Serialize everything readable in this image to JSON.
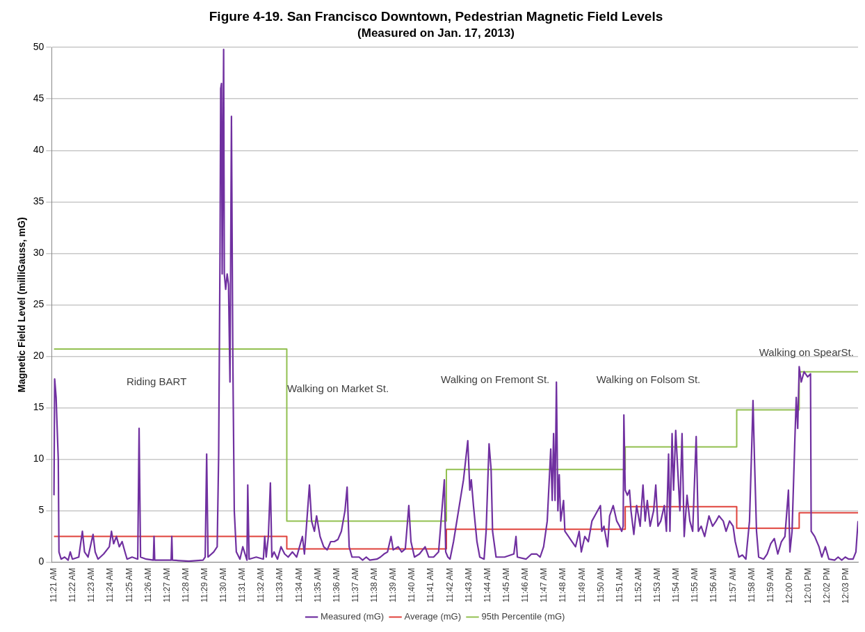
{
  "chart_data": {
    "type": "line",
    "title": "Figure 4-19. San Francisco Downtown, Pedestrian Magnetic Field Levels",
    "subtitle": "(Measured on Jan. 17, 2013)",
    "ylabel": "Magnetic Field Level (milliGauss, mG)",
    "xlim": [
      11.348,
      12.0604
    ],
    "xticks": [
      {
        "value": 11.35,
        "label": "11:21 AM"
      },
      {
        "value": 11.3667,
        "label": "11:22 AM"
      },
      {
        "value": 11.3833,
        "label": "11:23 AM"
      },
      {
        "value": 11.4,
        "label": "11:24 AM"
      },
      {
        "value": 11.4167,
        "label": "11:25 AM"
      },
      {
        "value": 11.4333,
        "label": "11:26 AM"
      },
      {
        "value": 11.45,
        "label": "11:27 AM"
      },
      {
        "value": 11.4667,
        "label": "11:28 AM"
      },
      {
        "value": 11.4833,
        "label": "11:29 AM"
      },
      {
        "value": 11.5,
        "label": "11:30 AM"
      },
      {
        "value": 11.5167,
        "label": "11:31 AM"
      },
      {
        "value": 11.5333,
        "label": "11:32 AM"
      },
      {
        "value": 11.55,
        "label": "11:33 AM"
      },
      {
        "value": 11.5667,
        "label": "11:34 AM"
      },
      {
        "value": 11.5833,
        "label": "11:35 AM"
      },
      {
        "value": 11.6,
        "label": "11:36 AM"
      },
      {
        "value": 11.6167,
        "label": "11:37 AM"
      },
      {
        "value": 11.6333,
        "label": "11:38 AM"
      },
      {
        "value": 11.65,
        "label": "11:39 AM"
      },
      {
        "value": 11.6667,
        "label": "11:40 AM"
      },
      {
        "value": 11.6833,
        "label": "11:41 AM"
      },
      {
        "value": 11.7,
        "label": "11:42 AM"
      },
      {
        "value": 11.7167,
        "label": "11:43 AM"
      },
      {
        "value": 11.7333,
        "label": "11:44 AM"
      },
      {
        "value": 11.75,
        "label": "11:45 AM"
      },
      {
        "value": 11.7667,
        "label": "11:46 AM"
      },
      {
        "value": 11.7833,
        "label": "11:47 AM"
      },
      {
        "value": 11.8,
        "label": "11:48 AM"
      },
      {
        "value": 11.8167,
        "label": "11:49 AM"
      },
      {
        "value": 11.8333,
        "label": "11:50 AM"
      },
      {
        "value": 11.85,
        "label": "11:51 AM"
      },
      {
        "value": 11.8667,
        "label": "11:52 AM"
      },
      {
        "value": 11.8833,
        "label": "11:53 AM"
      },
      {
        "value": 11.9,
        "label": "11:54 AM"
      },
      {
        "value": 11.9167,
        "label": "11:55 AM"
      },
      {
        "value": 11.9333,
        "label": "11:56 AM"
      },
      {
        "value": 11.95,
        "label": "11:57 AM"
      },
      {
        "value": 11.9667,
        "label": "11:58 AM"
      },
      {
        "value": 11.9833,
        "label": "11:59 AM"
      },
      {
        "value": 12.0,
        "label": "12:00 PM"
      },
      {
        "value": 12.0167,
        "label": "12:01 PM"
      },
      {
        "value": 12.0333,
        "label": "12:02 PM"
      },
      {
        "value": 12.05,
        "label": "12:03 PM"
      }
    ],
    "ylim": [
      0,
      50
    ],
    "yticks": [
      0,
      5,
      10,
      15,
      20,
      25,
      30,
      35,
      40,
      45,
      50
    ],
    "grid": "y",
    "legend": "bottom",
    "marker": "none",
    "line_style": "solid",
    "series": [
      {
        "name": "Measured (mG)",
        "color": "#7030a0",
        "x": [
          11.35,
          11.3506,
          11.3519,
          11.3525,
          11.3538,
          11.3544,
          11.3563,
          11.3594,
          11.3625,
          11.3644,
          11.3663,
          11.3719,
          11.3751,
          11.377,
          11.3801,
          11.3845,
          11.3864,
          11.3889,
          11.3939,
          11.3989,
          11.4008,
          11.4027,
          11.4052,
          11.4077,
          11.4102,
          11.4127,
          11.4146,
          11.419,
          11.424,
          11.4252,
          11.4265,
          11.4315,
          11.4378,
          11.4384,
          11.439,
          11.4535,
          11.4541,
          11.4547,
          11.4691,
          11.4817,
          11.4836,
          11.4849,
          11.4861,
          11.4911,
          11.4942,
          11.4955,
          11.4967,
          11.4973,
          11.498,
          11.4986,
          11.4999,
          11.5005,
          11.5017,
          11.503,
          11.5042,
          11.5055,
          11.5068,
          11.508,
          11.5093,
          11.5111,
          11.5143,
          11.5168,
          11.5205,
          11.5212,
          11.5224,
          11.5287,
          11.535,
          11.5362,
          11.5375,
          11.5394,
          11.5412,
          11.5425,
          11.5444,
          11.5475,
          11.5506,
          11.5538,
          11.5569,
          11.5607,
          11.5644,
          11.5695,
          11.5713,
          11.5757,
          11.5776,
          11.5801,
          11.582,
          11.5851,
          11.5883,
          11.5914,
          11.5945,
          11.5977,
          11.6008,
          11.6039,
          11.6071,
          11.609,
          11.6108,
          11.6133,
          11.6196,
          11.6227,
          11.6259,
          11.629,
          11.6353,
          11.6384,
          11.6416,
          11.6447,
          11.6478,
          11.6497,
          11.6541,
          11.6572,
          11.6604,
          11.6635,
          11.6654,
          11.6685,
          11.6729,
          11.6779,
          11.6811,
          11.6854,
          11.6898,
          11.6949,
          11.6961,
          11.698,
          11.6999,
          11.703,
          11.7074,
          11.7118,
          11.7156,
          11.7174,
          11.7187,
          11.7206,
          11.7237,
          11.7262,
          11.73,
          11.7318,
          11.7344,
          11.7362,
          11.7375,
          11.7406,
          11.7481,
          11.7563,
          11.7582,
          11.7594,
          11.767,
          11.772,
          11.7764,
          11.7795,
          11.7826,
          11.7858,
          11.7889,
          11.7902,
          11.7914,
          11.7927,
          11.7939,
          11.7952,
          11.7964,
          11.7977,
          11.8002,
          11.8014,
          11.8046,
          11.8077,
          11.8108,
          11.814,
          11.8159,
          11.819,
          11.8221,
          11.8253,
          11.8278,
          11.8303,
          11.8328,
          11.834,
          11.8359,
          11.8391,
          11.8409,
          11.8441,
          11.8472,
          11.8497,
          11.8516,
          11.8529,
          11.8535,
          11.8547,
          11.8566,
          11.8585,
          11.8598,
          11.8623,
          11.8648,
          11.8679,
          11.8704,
          11.8723,
          11.8742,
          11.8767,
          11.8798,
          11.8817,
          11.8836,
          11.8861,
          11.8892,
          11.8911,
          11.893,
          11.8942,
          11.8961,
          11.8974,
          11.8993,
          11.9011,
          11.903,
          11.9049,
          11.9068,
          11.9093,
          11.9118,
          11.9143,
          11.9174,
          11.9193,
          11.9218,
          11.9249,
          11.9287,
          11.9319,
          11.935,
          11.9375,
          11.9413,
          11.9438,
          11.9469,
          11.95,
          11.9519,
          11.9551,
          11.9582,
          11.9613,
          11.9645,
          11.9664,
          11.9676,
          11.9689,
          11.9707,
          11.9726,
          11.977,
          11.9801,
          11.9833,
          11.9864,
          11.9895,
          11.9927,
          11.9958,
          11.9989,
          12.0002,
          12.0021,
          12.0046,
          12.0058,
          12.0071,
          12.0084,
          12.0102,
          12.0127,
          12.0159,
          12.0184,
          12.019,
          12.0221,
          12.0259,
          12.0284,
          12.0315,
          12.0346,
          12.0397,
          12.0428,
          12.046,
          12.0491,
          12.0522,
          12.056,
          12.0585,
          12.0604
        ],
        "values": [
          6.5,
          17.8,
          16,
          14,
          10,
          1,
          0.3,
          0.5,
          0.2,
          1,
          0.3,
          0.5,
          3,
          1,
          0.5,
          2.7,
          1,
          0.3,
          0.8,
          1.5,
          3,
          1.8,
          2.5,
          1.5,
          2,
          1,
          0.3,
          0.5,
          0.3,
          13,
          0.5,
          0.3,
          0.2,
          2.5,
          0.2,
          0.2,
          2.5,
          0.2,
          0.1,
          0.2,
          0.5,
          10.5,
          0.5,
          1,
          1.5,
          10.5,
          30,
          46,
          46.5,
          28,
          49.8,
          28,
          26.5,
          28,
          27,
          17.5,
          43.3,
          20,
          5,
          1,
          0.3,
          1.5,
          0.2,
          7.5,
          0.3,
          0.5,
          0.3,
          2.5,
          0.5,
          2.5,
          7.7,
          0.5,
          1,
          0.3,
          1.5,
          0.8,
          0.5,
          1,
          0.5,
          2.5,
          0.8,
          7.5,
          4,
          3,
          4.5,
          2.5,
          1.5,
          1.2,
          2,
          2,
          2.2,
          3,
          5,
          7.3,
          1.5,
          0.5,
          0.5,
          0.2,
          0.5,
          0.2,
          0.3,
          0.5,
          0.8,
          1,
          2.5,
          1.2,
          1.5,
          1,
          1.3,
          5.5,
          2,
          0.5,
          0.8,
          1.5,
          0.5,
          0.5,
          1,
          8,
          1,
          0.5,
          0.3,
          2,
          5,
          8,
          11.8,
          7,
          8,
          5.5,
          2,
          0.5,
          0.3,
          3,
          11.5,
          9,
          3,
          0.5,
          0.5,
          0.8,
          2.5,
          0.5,
          0.3,
          0.8,
          0.8,
          0.5,
          1.5,
          4,
          11,
          6,
          12.5,
          6,
          17.5,
          5,
          8.5,
          4,
          6,
          3,
          2.5,
          2,
          1.5,
          3,
          1,
          2.5,
          2,
          4,
          4.5,
          5,
          5.5,
          3,
          3.5,
          1.5,
          4.5,
          5.5,
          4,
          3.5,
          3,
          3.5,
          14.3,
          7,
          6.5,
          7,
          5,
          2.7,
          5.5,
          3.5,
          7.5,
          4,
          6,
          3.5,
          5,
          7.5,
          3.5,
          4,
          5.5,
          3,
          10.5,
          3,
          12.5,
          7,
          12.8,
          9,
          5,
          12.5,
          2.5,
          6.5,
          4,
          3,
          12.2,
          3,
          3.5,
          2.5,
          4.5,
          3.5,
          4,
          4.5,
          4,
          3,
          4,
          3.5,
          2,
          0.5,
          0.7,
          0.3,
          4,
          11,
          15.7,
          10,
          3,
          0.5,
          0.3,
          0.8,
          1.8,
          2.3,
          0.8,
          2,
          2.5,
          7,
          1,
          3,
          12,
          16,
          13,
          19,
          17.5,
          18.5,
          18,
          18.3,
          3,
          2.5,
          1.5,
          0.5,
          1.5,
          0.3,
          0.2,
          0.5,
          0.2,
          0.5,
          0.3,
          0.3,
          1,
          4
        ]
      },
      {
        "name": "Average (mG)",
        "color": "#e0413a",
        "type": "step",
        "x": [
          11.35,
          11.5557,
          11.6967,
          11.8547,
          11.9532,
          12.0084,
          12.0604
        ],
        "values": [
          2.5,
          1.3,
          3.2,
          5.4,
          3.3,
          4.8,
          4.8
        ]
      },
      {
        "name": "95th Percentile (mG)",
        "color": "#92c050",
        "type": "step",
        "x": [
          11.35,
          11.5557,
          11.6967,
          11.8547,
          11.9532,
          12.0084,
          12.0604
        ],
        "values": [
          20.7,
          4.0,
          9.0,
          11.2,
          14.8,
          18.5,
          18.5
        ]
      }
    ],
    "annotations": [
      "Riding BART",
      "Walking on Market St.",
      "Walking on Fremont St.",
      "Walking on Folsom St.",
      "Walking on SpearSt."
    ]
  }
}
